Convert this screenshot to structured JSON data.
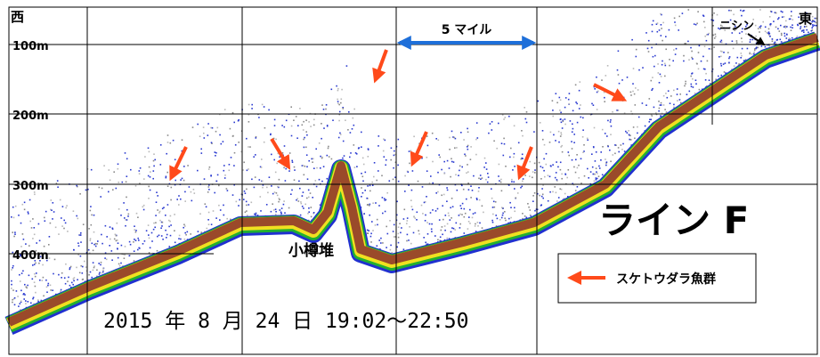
{
  "labels": {
    "west": "西",
    "east": "東",
    "herring": "ニシン",
    "distance": "5 マイル",
    "bank": "小樽堆",
    "line": "ライン F",
    "date": "2015 年 8 月 24 日 19:02～22:50"
  },
  "depths": [
    "100m",
    "200m",
    "300m",
    "400m"
  ],
  "legend": {
    "label": "スケトウダラ魚群"
  }
}
